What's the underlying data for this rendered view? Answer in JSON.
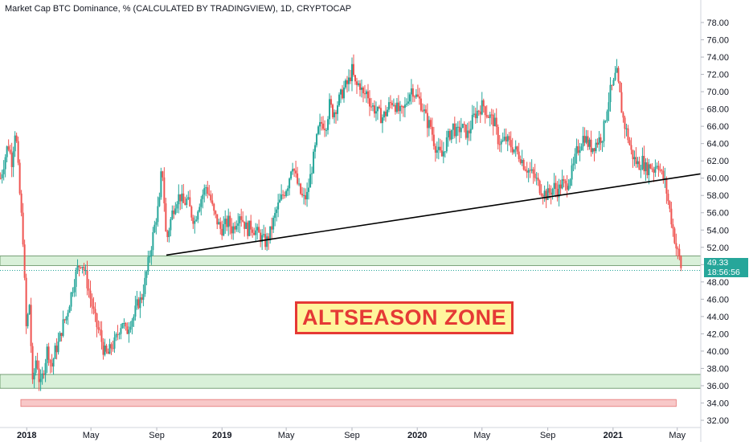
{
  "header": {
    "title": "Market Cap BTC Dominance, % (CALCULATED BY TRADINGVIEW), 1D, CRYPTOCAP"
  },
  "price_tag": {
    "value": "49.33",
    "countdown": "18:56:56"
  },
  "annotation": {
    "text": "ALTSEASON ZONE"
  },
  "colors": {
    "up": "#26a69a",
    "down": "#ef5350",
    "zone_fill": "#d9f0d9",
    "zone_border": "#5a8a5a",
    "annotation_border": "#e53935",
    "annotation_fill": "#fff59d",
    "trendline": "#000000"
  },
  "chart_data": {
    "type": "candlestick",
    "title": "Market Cap BTC Dominance, % (CALCULATED BY TRADINGVIEW), 1D, CRYPTOCAP",
    "xlabel": "",
    "ylabel": "",
    "ylim": [
      32,
      78
    ],
    "xlim": [
      "2017-11-12",
      "2021-06-14"
    ],
    "y_ticks": [
      32,
      34,
      36,
      38,
      40,
      42,
      44,
      46,
      48,
      50,
      52,
      54,
      56,
      58,
      60,
      62,
      64,
      66,
      68,
      70,
      72,
      74,
      76,
      78
    ],
    "y_tick_labels": [
      "32.00",
      "34.00",
      "36.00",
      "38.00",
      "40.00",
      "42.00",
      "44.00",
      "46.00",
      "48.00",
      "50.00",
      "52.00",
      "54.00",
      "56.00",
      "58.00",
      "60.00",
      "62.00",
      "64.00",
      "66.00",
      "68.00",
      "70.00",
      "72.00",
      "74.00",
      "76.00",
      "78.00"
    ],
    "x_ticks": [
      {
        "label": "2018",
        "date": "2018-01-01",
        "bold": true
      },
      {
        "label": "May",
        "date": "2018-05-01",
        "bold": false
      },
      {
        "label": "Sep",
        "date": "2018-09-01",
        "bold": false
      },
      {
        "label": "2019",
        "date": "2019-01-01",
        "bold": true
      },
      {
        "label": "May",
        "date": "2019-05-01",
        "bold": false
      },
      {
        "label": "Sep",
        "date": "2019-09-01",
        "bold": false
      },
      {
        "label": "2020",
        "date": "2020-01-01",
        "bold": true
      },
      {
        "label": "May",
        "date": "2020-05-01",
        "bold": false
      },
      {
        "label": "Sep",
        "date": "2020-09-01",
        "bold": false
      },
      {
        "label": "2021",
        "date": "2021-01-01",
        "bold": true
      },
      {
        "label": "May",
        "date": "2021-05-01",
        "bold": false
      }
    ],
    "last_price": 49.33,
    "zones": [
      {
        "name": "support-zone-upper",
        "y_from": 49.9,
        "y_to": 51.0,
        "color": "#d9f0d9"
      },
      {
        "name": "support-zone-lower",
        "y_from": 35.7,
        "y_to": 37.3,
        "color": "#d9f0d9"
      },
      {
        "name": "bottom-zone",
        "x_from": "2017-12-21",
        "x_to": "2021-04-29",
        "y_from": 33.6,
        "y_to": 34.4,
        "color": "#f8c8c8"
      }
    ],
    "trendline": {
      "x1": "2018-09-19",
      "y1": 51.1,
      "x2": "2021-06-14",
      "y2": 60.5
    },
    "series": [
      {
        "values": [
          [
            "2017-11-13",
            60.0
          ],
          [
            "2017-11-20",
            62.0
          ],
          [
            "2017-11-27",
            64.0
          ],
          [
            "2017-12-04",
            62.0
          ],
          [
            "2017-12-11",
            66.0
          ],
          [
            "2017-12-18",
            59.0
          ],
          [
            "2017-12-25",
            53.0
          ],
          [
            "2018-01-01",
            41.0
          ],
          [
            "2018-01-05",
            47.0
          ],
          [
            "2018-01-12",
            36.0
          ],
          [
            "2018-01-19",
            39.5
          ],
          [
            "2018-01-26",
            35.7
          ],
          [
            "2018-02-02",
            38.0
          ],
          [
            "2018-02-09",
            40.5
          ],
          [
            "2018-02-16",
            38.0
          ],
          [
            "2018-02-23",
            40.0
          ],
          [
            "2018-03-02",
            41.0
          ],
          [
            "2018-03-09",
            43.0
          ],
          [
            "2018-03-16",
            44.0
          ],
          [
            "2018-03-23",
            46.0
          ],
          [
            "2018-03-30",
            48.0
          ],
          [
            "2018-04-06",
            49.5
          ],
          [
            "2018-04-13",
            50.5
          ],
          [
            "2018-04-20",
            49.0
          ],
          [
            "2018-04-27",
            47.0
          ],
          [
            "2018-05-04",
            45.0
          ],
          [
            "2018-05-11",
            43.0
          ],
          [
            "2018-05-18",
            42.0
          ],
          [
            "2018-05-25",
            40.0
          ],
          [
            "2018-06-01",
            39.5
          ],
          [
            "2018-06-08",
            40.5
          ],
          [
            "2018-06-15",
            41.0
          ],
          [
            "2018-06-22",
            42.5
          ],
          [
            "2018-06-29",
            43.5
          ],
          [
            "2018-07-06",
            42.0
          ],
          [
            "2018-07-13",
            43.5
          ],
          [
            "2018-07-20",
            44.0
          ],
          [
            "2018-07-27",
            45.5
          ],
          [
            "2018-08-03",
            46.0
          ],
          [
            "2018-08-10",
            48.0
          ],
          [
            "2018-08-17",
            50.5
          ],
          [
            "2018-08-24",
            53.0
          ],
          [
            "2018-08-31",
            55.5
          ],
          [
            "2018-09-07",
            57.5
          ],
          [
            "2018-09-10",
            61.5
          ],
          [
            "2018-09-13",
            60.0
          ],
          [
            "2018-09-16",
            56.0
          ],
          [
            "2018-09-19",
            52.5
          ],
          [
            "2018-09-23",
            54.0
          ],
          [
            "2018-09-30",
            56.0
          ],
          [
            "2018-10-07",
            57.5
          ],
          [
            "2018-10-14",
            58.0
          ],
          [
            "2018-10-21",
            57.0
          ],
          [
            "2018-10-28",
            57.5
          ],
          [
            "2018-11-04",
            56.0
          ],
          [
            "2018-11-11",
            55.0
          ],
          [
            "2018-11-18",
            57.0
          ],
          [
            "2018-11-25",
            58.0
          ],
          [
            "2018-12-02",
            59.0
          ],
          [
            "2018-12-09",
            58.0
          ],
          [
            "2018-12-16",
            56.0
          ],
          [
            "2018-12-23",
            55.0
          ],
          [
            "2018-12-30",
            54.0
          ],
          [
            "2019-01-06",
            54.5
          ],
          [
            "2019-01-13",
            55.0
          ],
          [
            "2019-01-20",
            54.0
          ],
          [
            "2019-01-27",
            55.0
          ],
          [
            "2019-02-03",
            56.0
          ],
          [
            "2019-02-10",
            55.0
          ],
          [
            "2019-02-17",
            54.0
          ],
          [
            "2019-02-24",
            54.5
          ],
          [
            "2019-03-03",
            54.0
          ],
          [
            "2019-03-10",
            53.5
          ],
          [
            "2019-03-17",
            53.0
          ],
          [
            "2019-03-24",
            52.5
          ],
          [
            "2019-03-31",
            53.5
          ],
          [
            "2019-04-07",
            55.0
          ],
          [
            "2019-04-14",
            56.5
          ],
          [
            "2019-04-21",
            57.5
          ],
          [
            "2019-04-28",
            58.5
          ],
          [
            "2019-05-05",
            59.5
          ],
          [
            "2019-05-12",
            62.0
          ],
          [
            "2019-05-19",
            60.0
          ],
          [
            "2019-05-26",
            58.5
          ],
          [
            "2019-06-02",
            57.5
          ],
          [
            "2019-06-09",
            58.0
          ],
          [
            "2019-06-16",
            60.5
          ],
          [
            "2019-06-23",
            63.0
          ],
          [
            "2019-06-30",
            65.5
          ],
          [
            "2019-07-07",
            66.5
          ],
          [
            "2019-07-14",
            66.0
          ],
          [
            "2019-07-21",
            68.5
          ],
          [
            "2019-07-28",
            67.5
          ],
          [
            "2019-08-04",
            68.5
          ],
          [
            "2019-08-11",
            69.5
          ],
          [
            "2019-08-18",
            70.5
          ],
          [
            "2019-08-25",
            71.0
          ],
          [
            "2019-09-01",
            72.5
          ],
          [
            "2019-09-08",
            70.5
          ],
          [
            "2019-09-15",
            71.0
          ],
          [
            "2019-09-22",
            69.5
          ],
          [
            "2019-09-29",
            70.0
          ],
          [
            "2019-10-06",
            68.5
          ],
          [
            "2019-10-13",
            68.0
          ],
          [
            "2019-10-20",
            67.5
          ],
          [
            "2019-10-27",
            67.0
          ],
          [
            "2019-11-03",
            67.5
          ],
          [
            "2019-11-10",
            68.5
          ],
          [
            "2019-11-17",
            69.0
          ],
          [
            "2019-11-24",
            68.0
          ],
          [
            "2019-12-01",
            67.5
          ],
          [
            "2019-12-08",
            68.0
          ],
          [
            "2019-12-15",
            69.5
          ],
          [
            "2019-12-22",
            70.5
          ],
          [
            "2019-12-29",
            69.5
          ],
          [
            "2020-01-05",
            69.0
          ],
          [
            "2020-01-12",
            68.0
          ],
          [
            "2020-01-19",
            66.5
          ],
          [
            "2020-01-26",
            66.0
          ],
          [
            "2020-02-02",
            64.0
          ],
          [
            "2020-02-09",
            63.0
          ],
          [
            "2020-02-16",
            62.5
          ],
          [
            "2020-02-23",
            64.0
          ],
          [
            "2020-03-01",
            65.0
          ],
          [
            "2020-03-08",
            66.0
          ],
          [
            "2020-03-15",
            65.0
          ],
          [
            "2020-03-22",
            66.0
          ],
          [
            "2020-03-29",
            65.5
          ],
          [
            "2020-04-05",
            65.0
          ],
          [
            "2020-04-12",
            66.5
          ],
          [
            "2020-04-19",
            67.5
          ],
          [
            "2020-04-26",
            68.0
          ],
          [
            "2020-05-03",
            68.5
          ],
          [
            "2020-05-10",
            67.5
          ],
          [
            "2020-05-17",
            67.0
          ],
          [
            "2020-05-24",
            66.5
          ],
          [
            "2020-05-31",
            64.5
          ],
          [
            "2020-06-07",
            64.0
          ],
          [
            "2020-06-14",
            64.5
          ],
          [
            "2020-06-21",
            64.0
          ],
          [
            "2020-06-28",
            63.5
          ],
          [
            "2020-07-05",
            63.0
          ],
          [
            "2020-07-12",
            62.5
          ],
          [
            "2020-07-19",
            61.5
          ],
          [
            "2020-07-26",
            61.0
          ],
          [
            "2020-08-02",
            60.5
          ],
          [
            "2020-08-09",
            60.0
          ],
          [
            "2020-08-16",
            59.0
          ],
          [
            "2020-08-23",
            58.5
          ],
          [
            "2020-08-30",
            58.0
          ],
          [
            "2020-09-06",
            58.5
          ],
          [
            "2020-09-13",
            59.0
          ],
          [
            "2020-09-20",
            58.5
          ],
          [
            "2020-09-27",
            59.5
          ],
          [
            "2020-10-04",
            59.0
          ],
          [
            "2020-10-11",
            60.0
          ],
          [
            "2020-10-18",
            61.0
          ],
          [
            "2020-10-25",
            63.0
          ],
          [
            "2020-11-01",
            64.0
          ],
          [
            "2020-11-08",
            65.0
          ],
          [
            "2020-11-15",
            64.0
          ],
          [
            "2020-11-22",
            63.5
          ],
          [
            "2020-11-29",
            64.0
          ],
          [
            "2020-12-06",
            64.5
          ],
          [
            "2020-12-13",
            65.0
          ],
          [
            "2020-12-20",
            68.0
          ],
          [
            "2020-12-27",
            70.0
          ],
          [
            "2021-01-03",
            71.0
          ],
          [
            "2021-01-07",
            72.5
          ],
          [
            "2021-01-10",
            71.0
          ],
          [
            "2021-01-14",
            69.5
          ],
          [
            "2021-01-17",
            68.0
          ],
          [
            "2021-01-21",
            66.5
          ],
          [
            "2021-01-28",
            65.0
          ],
          [
            "2021-02-04",
            63.0
          ],
          [
            "2021-02-11",
            62.0
          ],
          [
            "2021-02-18",
            61.5
          ],
          [
            "2021-02-25",
            62.0
          ],
          [
            "2021-03-04",
            61.0
          ],
          [
            "2021-03-11",
            61.5
          ],
          [
            "2021-03-18",
            61.0
          ],
          [
            "2021-03-25",
            62.0
          ],
          [
            "2021-04-01",
            60.5
          ],
          [
            "2021-04-08",
            59.5
          ],
          [
            "2021-04-15",
            57.0
          ],
          [
            "2021-04-22",
            54.5
          ],
          [
            "2021-04-29",
            52.0
          ],
          [
            "2021-05-06",
            50.5
          ],
          [
            "2021-05-09",
            49.33
          ]
        ]
      }
    ]
  }
}
